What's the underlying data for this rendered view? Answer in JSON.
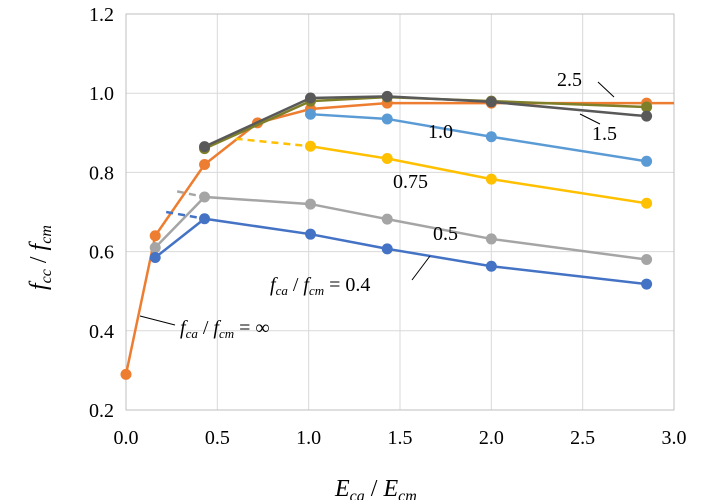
{
  "chart_data": {
    "type": "line",
    "xlabel": {
      "main": "E",
      "sub1": "ca",
      "sep": " / ",
      "main2": "E",
      "sub2": "cm"
    },
    "ylabel": {
      "main": "f",
      "sub1": "cc",
      "sep": " / ",
      "main2": "f",
      "sub2": "cm"
    },
    "xlim": [
      0,
      3.0
    ],
    "ylim": [
      0.2,
      1.2
    ],
    "xticks": [
      "0.0",
      "0.5",
      "1.0",
      "1.5",
      "2.0",
      "2.5",
      "3.0"
    ],
    "yticks": [
      "0.2",
      "0.4",
      "0.6",
      "0.8",
      "1.0",
      "1.2"
    ],
    "grid": true,
    "series": [
      {
        "name": "∞",
        "color": "#ED7D31",
        "x": [
          0.0,
          0.16,
          0.43,
          0.72,
          1.01,
          1.43,
          2.0,
          2.85
        ],
        "y": [
          0.29,
          0.64,
          0.82,
          0.925,
          0.96,
          0.975,
          0.975,
          0.975
        ],
        "extend_to": 3.0
      },
      {
        "name": "2.5",
        "color": "#7F7F2A",
        "x": [
          0.43,
          1.01,
          1.43,
          2.0,
          2.85
        ],
        "y": [
          0.86,
          0.98,
          0.99,
          0.98,
          0.965
        ]
      },
      {
        "name": "1.5",
        "color": "#595959",
        "x": [
          0.43,
          1.01,
          1.43,
          2.0,
          2.85
        ],
        "y": [
          0.865,
          0.988,
          0.992,
          0.978,
          0.942
        ]
      },
      {
        "name": "1.0",
        "color": "#5B9BD5",
        "x": [
          1.01,
          1.43,
          2.0,
          2.85
        ],
        "y": [
          0.947,
          0.935,
          0.89,
          0.828
        ]
      },
      {
        "name": "0.75",
        "color": "#FFC000",
        "x": [
          1.01,
          1.43,
          2.0,
          2.85
        ],
        "y": [
          0.866,
          0.835,
          0.783,
          0.722
        ],
        "dashed_from": [
          0.6,
          0.885
        ]
      },
      {
        "name": "0.5",
        "color": "#A5A5A5",
        "x": [
          0.16,
          0.43,
          1.01,
          1.43,
          2.0,
          2.85
        ],
        "y": [
          0.61,
          0.738,
          0.72,
          0.682,
          0.632,
          0.58
        ],
        "dashed_from": [
          0.28,
          0.752
        ]
      },
      {
        "name": "0.4",
        "color": "#4472C4",
        "x": [
          0.16,
          0.43,
          1.01,
          1.43,
          2.0,
          2.85
        ],
        "y": [
          0.585,
          0.683,
          0.644,
          0.607,
          0.563,
          0.518
        ],
        "dashed_from": [
          0.22,
          0.7
        ]
      }
    ],
    "annotations": {
      "label_2_5": "2.5",
      "label_1_5": "1.5",
      "label_1_0": "1.0",
      "label_0_75": "0.75",
      "label_0_5": "0.5",
      "label_0_4": {
        "f1": "f",
        "s1": "ca",
        "sep": " / ",
        "f2": "f",
        "s2": "cm",
        "eq": " =  ",
        "val": "0.4"
      },
      "label_inf": {
        "f1": "f",
        "s1": "ca",
        "sep": " / ",
        "f2": "f",
        "s2": "cm",
        "eq": " = ",
        "val": "∞"
      }
    }
  }
}
